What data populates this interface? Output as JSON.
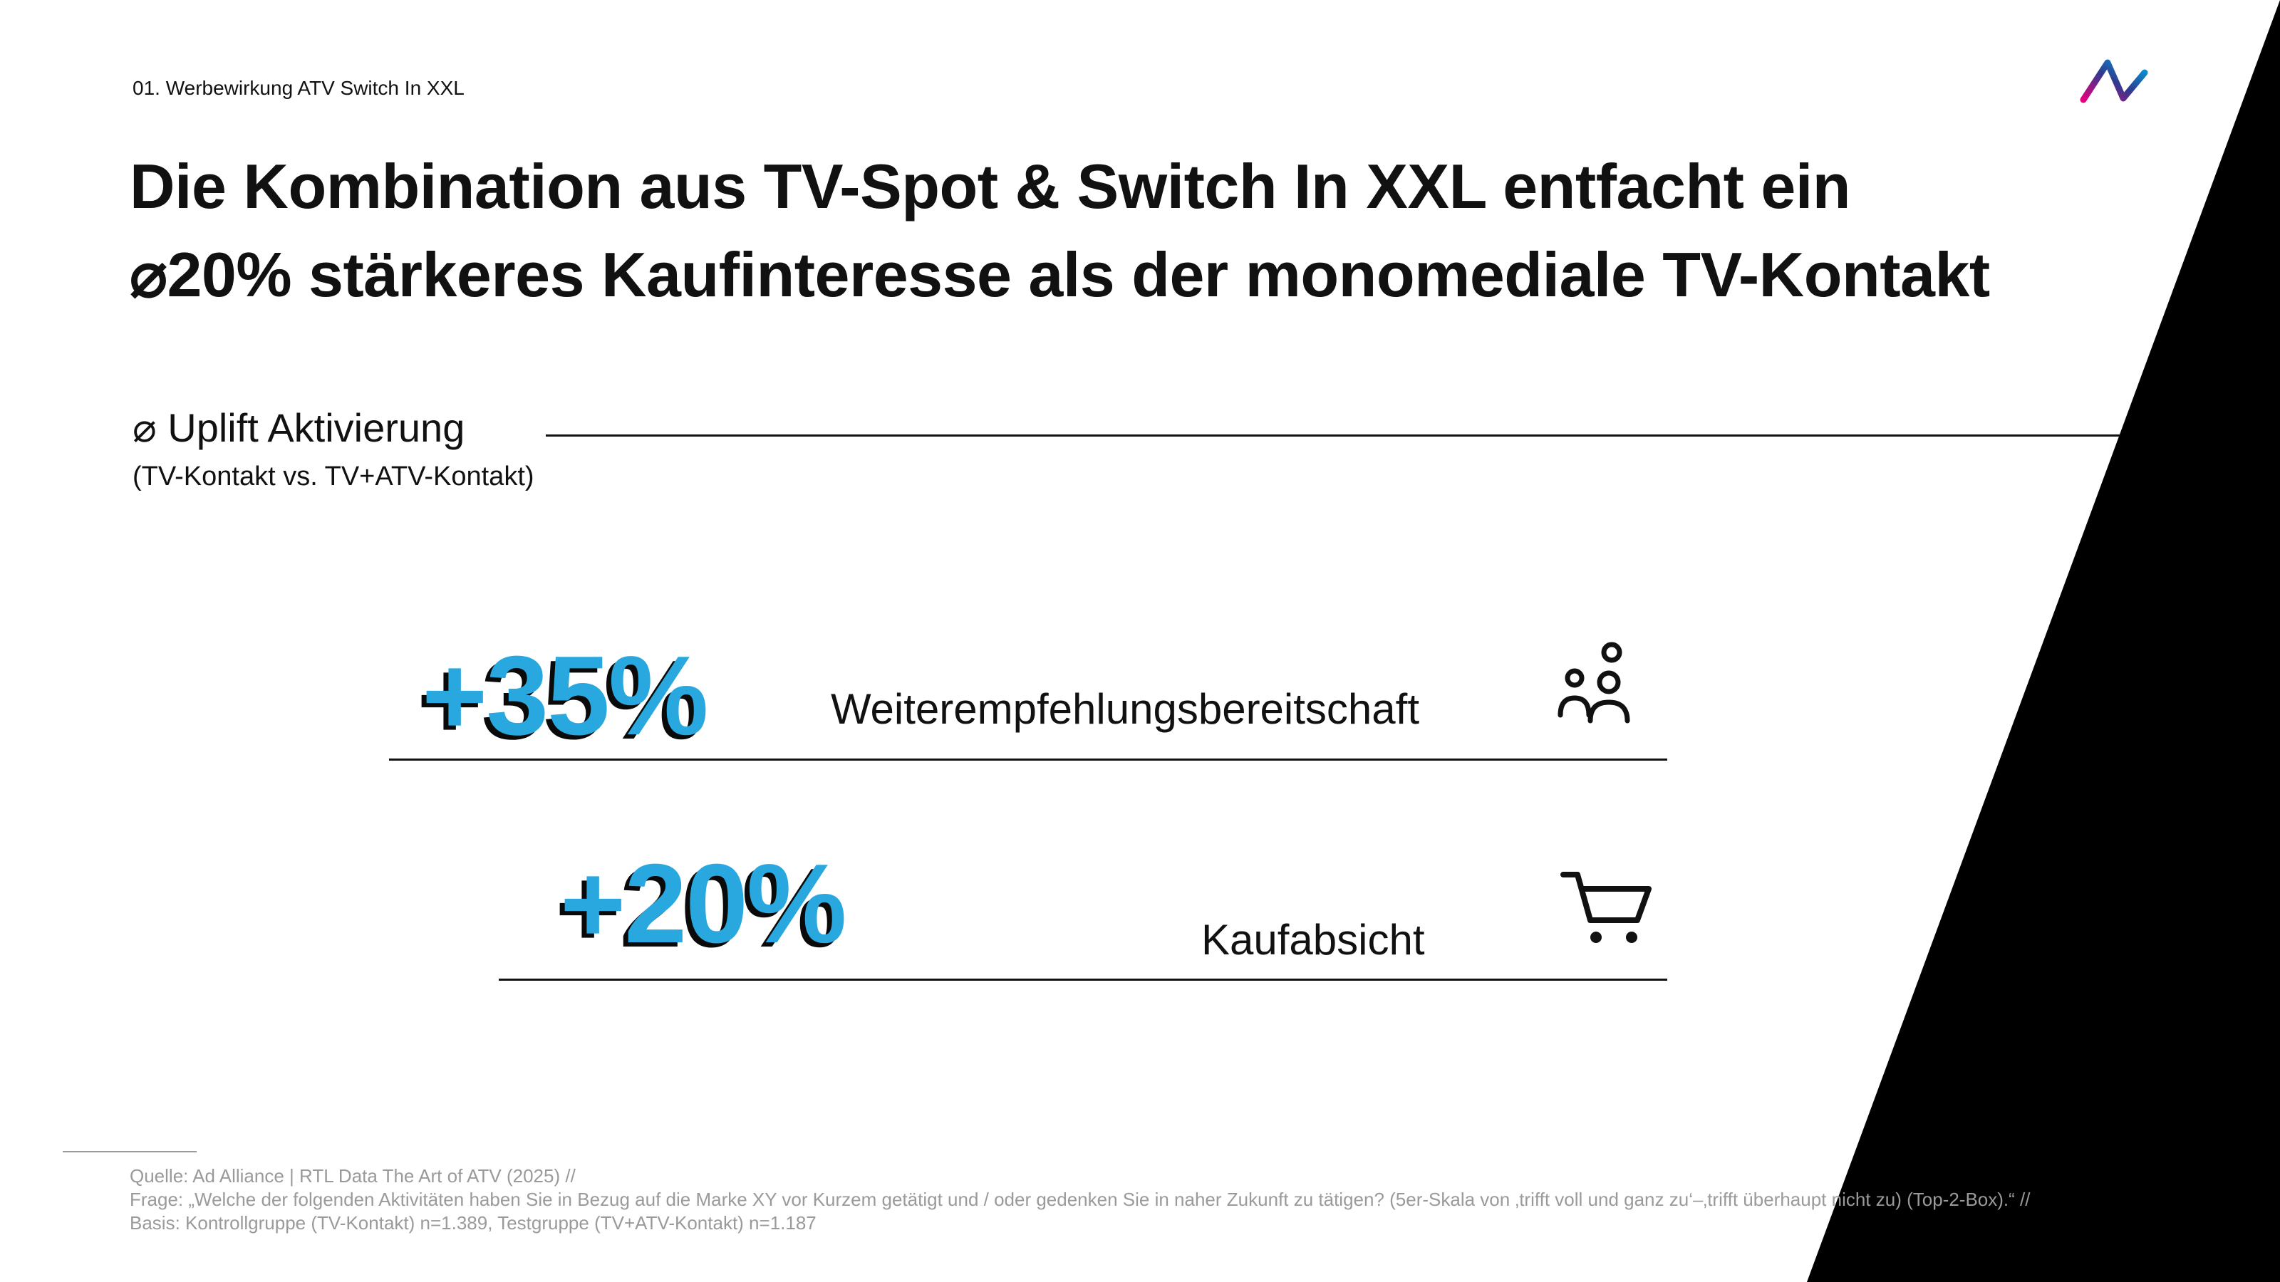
{
  "slide": {
    "section_label": "01. Werbewirkung ATV Switch In XXL",
    "logo_icon": "ad-alliance-logo",
    "headline": {
      "line1": "Die Kombination aus TV-Spot & Switch In XXL entfacht ein",
      "line2": "⌀20% stärkeres Kaufinteresse als der monomediale TV-Kontakt"
    },
    "metric_heading": "⌀ Uplift Aktivierung",
    "metric_subheading": "(TV-Kontakt vs. TV+ATV-Kontakt)",
    "metrics": [
      {
        "value": "+35%",
        "label": "Weiterempfehlungsbereitschaft",
        "icon": "people-icon"
      },
      {
        "value": "+20%",
        "label": "Kaufabsicht",
        "icon": "shopping-cart-icon"
      }
    ],
    "footnote": {
      "source": "Quelle: Ad Alliance | RTL Data The Art of ATV (2025) //",
      "question": "Frage: „Welche der folgenden Aktivitäten haben Sie in Bezug auf die Marke XY vor Kurzem getätigt und / oder gedenken Sie in naher Zukunft zu tätigen? (5er-Skala von ‚trifft voll und ganz zu‘–‚trifft überhaupt nicht zu) (Top-2-Box).“ //",
      "basis": "Basis: Kontrollgruppe (TV-Kontakt) n=1.389, Testgruppe (TV+ATV-Kontakt) n=1.187"
    },
    "colors": {
      "accent": "#29a8e0",
      "text": "#111111",
      "footnote": "#9a9a9a",
      "logo_gradient": [
        "#e6007e",
        "#2f3a8f",
        "#00a3e0"
      ]
    }
  }
}
